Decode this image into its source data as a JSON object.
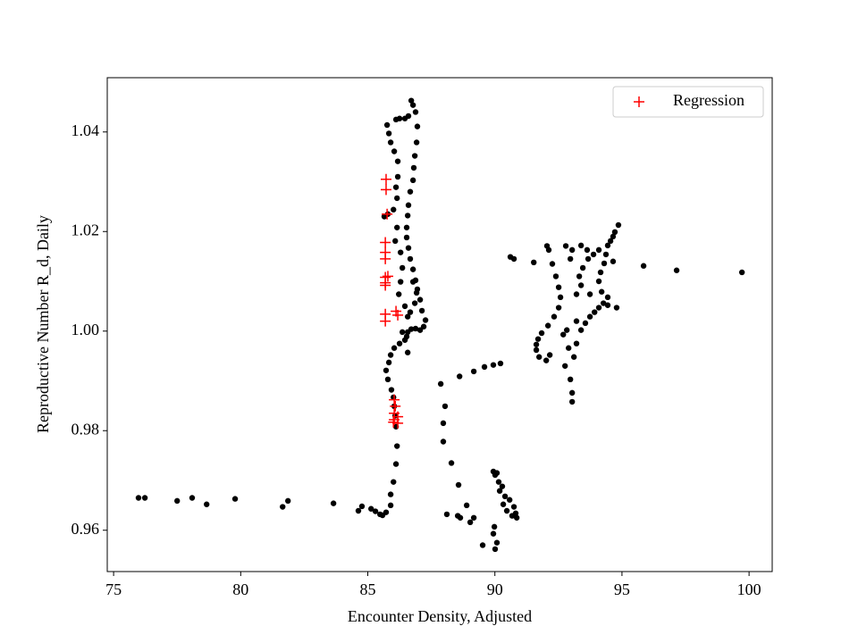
{
  "chart_data": {
    "type": "scatter",
    "xlabel": "Encounter Density, Adjusted",
    "ylabel": "Reproductive Number R_d, Daily",
    "xlim": [
      74.75,
      100.91
    ],
    "ylim": [
      0.9517,
      1.0509
    ],
    "xticks": [
      75,
      80,
      85,
      90,
      95,
      100
    ],
    "yticks": [
      0.96,
      0.98,
      {
        "value": 1,
        "label": "1.00"
      },
      1.02,
      1.04
    ],
    "grid": false,
    "legend_loc": "upper right",
    "series": [
      {
        "color": "#000000",
        "marker": "o",
        "x": [
          75.98,
          76.23,
          77.5,
          78.09,
          78.66,
          79.78,
          81.65,
          81.86,
          83.65,
          84.63,
          84.77,
          85.13,
          85.3,
          85.48,
          85.58,
          85.72,
          85.9,
          85.9,
          86.01,
          86.11,
          86.15,
          86.11,
          86.08,
          86.04,
          86.01,
          85.93,
          85.79,
          85.72,
          85.83,
          85.9,
          86.04,
          86.25,
          86.46,
          86.53,
          86.57,
          86.71,
          86.88,
          87.06,
          87.2,
          87.27,
          87.13,
          87.06,
          86.95,
          86.88,
          86.78,
          86.67,
          86.6,
          86.53,
          86.53,
          86.57,
          86.6,
          86.67,
          86.78,
          86.81,
          86.85,
          86.92,
          86.95,
          86.88,
          86.78,
          86.71,
          86.6,
          86.46,
          86.25,
          86.11,
          85.76,
          85.83,
          85.9,
          86.04,
          86.18,
          86.18,
          86.11,
          86.15,
          86.01,
          85.79,
          85.65,
          86.15,
          86.08,
          86.29,
          86.36,
          86.29,
          86.22,
          86.46,
          86.57,
          86.36,
          86.57,
          86.67,
          86.78,
          86.92,
          86.85,
          87.87,
          88.04,
          87.97,
          87.97,
          88.29,
          88.57,
          88.11,
          88.54,
          88.64,
          88.89,
          89.03,
          89.17,
          89.52,
          90.01,
          90.08,
          89.94,
          89.98,
          89.94,
          90.01,
          90.15,
          90.29,
          90.4,
          90.58,
          90.75,
          90.82,
          90.86,
          90.68,
          90.47,
          90.33,
          90.19,
          90.08,
          88.61,
          89.17,
          89.59,
          89.94,
          90.22,
          90.61,
          90.75,
          91.53,
          92.05,
          92.12,
          92.26,
          92.4,
          92.51,
          92.58,
          92.51,
          92.33,
          92.09,
          91.84,
          91.7,
          91.63,
          91.63,
          91.74,
          92.02,
          92.16,
          92.69,
          92.83,
          92.9,
          92.76,
          92.97,
          93.04,
          93.04,
          93.11,
          93.21,
          93.39,
          93.56,
          93.74,
          93.92,
          94.09,
          94.27,
          94.44,
          94.79,
          94.44,
          94.2,
          94.09,
          94.16,
          94.3,
          94.37,
          94.44,
          94.55,
          94.65,
          94.72,
          94.86,
          93.74,
          93.39,
          93.32,
          93.46,
          93.67,
          93.88,
          94.09,
          93.63,
          93.39,
          93.04,
          92.97,
          92.79,
          94.65,
          95.85,
          97.15,
          99.72,
          93.21,
          93.21
        ],
        "values": [
          0.9665,
          0.9665,
          0.9659,
          0.9665,
          0.9652,
          0.9663,
          0.9647,
          0.9659,
          0.9654,
          0.9639,
          0.9648,
          0.9643,
          0.9638,
          0.9632,
          0.963,
          0.9636,
          0.965,
          0.9672,
          0.9697,
          0.9733,
          0.9769,
          0.9808,
          0.983,
          0.9849,
          0.9867,
          0.9882,
          0.9903,
          0.9921,
          0.9937,
          0.9952,
          0.9966,
          0.9975,
          0.9982,
          0.9989,
          0.9998,
          1.0004,
          1.0005,
          1.0002,
          1.0009,
          1.0022,
          1.0041,
          1.0063,
          1.0084,
          1.0102,
          1.0124,
          1.0145,
          1.0167,
          1.0188,
          1.0208,
          1.0232,
          1.0253,
          1.028,
          1.0303,
          1.0328,
          1.0352,
          1.0379,
          1.0411,
          1.044,
          1.0454,
          1.0463,
          1.0432,
          1.0427,
          1.0427,
          1.0425,
          1.0414,
          1.0397,
          1.0379,
          1.0361,
          1.0341,
          1.031,
          1.0289,
          1.0267,
          1.0244,
          1.0235,
          1.023,
          1.0208,
          1.0181,
          1.0158,
          1.0127,
          1.0099,
          1.0074,
          1.005,
          1.0029,
          0.9998,
          0.9957,
          1.0038,
          1.0099,
          1.0077,
          1.0056,
          0.9894,
          0.9849,
          0.9815,
          0.9778,
          0.9735,
          0.9691,
          0.9632,
          0.9629,
          0.9625,
          0.965,
          0.9616,
          0.9625,
          0.957,
          0.9562,
          0.9575,
          0.9593,
          0.9607,
          0.9718,
          0.9711,
          0.9697,
          0.9688,
          0.9668,
          0.9661,
          0.9647,
          0.9634,
          0.9625,
          0.9629,
          0.9639,
          0.9652,
          0.9679,
          0.9715,
          0.9909,
          0.9919,
          0.9928,
          0.9932,
          0.9935,
          1.0149,
          1.0145,
          1.0138,
          1.0171,
          1.0163,
          1.0135,
          1.011,
          1.0088,
          1.0068,
          1.0047,
          1.0029,
          1.0011,
          0.9996,
          0.9984,
          0.9973,
          0.9962,
          0.9948,
          0.9941,
          0.9952,
          0.9993,
          1.0002,
          0.9966,
          0.993,
          0.9903,
          0.9876,
          0.9858,
          0.9948,
          0.9975,
          1.0002,
          1.0016,
          1.0029,
          1.0038,
          1.0047,
          1.0056,
          1.0052,
          1.0047,
          1.0068,
          1.0079,
          1.01,
          1.0118,
          1.0136,
          1.0154,
          1.0172,
          1.0181,
          1.019,
          1.0199,
          1.0213,
          1.0074,
          1.0092,
          1.011,
          1.0127,
          1.0145,
          1.0154,
          1.0163,
          1.0163,
          1.0172,
          1.0163,
          1.0145,
          1.0171,
          1.014,
          1.0131,
          1.0122,
          1.0118,
          1.0074,
          1.002
        ]
      },
      {
        "name": "Regression",
        "color": "#ff0000",
        "marker": "+",
        "x": [
          85.72,
          85.72,
          85.76,
          85.69,
          85.69,
          85.69,
          85.69,
          85.69,
          85.69,
          85.79,
          85.69,
          85.69,
          86.11,
          86.18,
          86.04,
          86.08,
          86.04,
          86.04,
          86.18,
          86.18,
          86.01
        ],
        "values": [
          1.0305,
          1.0284,
          1.0235,
          1.0178,
          1.0158,
          1.0145,
          1.0108,
          1.0097,
          1.0092,
          1.011,
          1.0034,
          1.002,
          1.004,
          1.0032,
          0.9862,
          0.9849,
          0.9835,
          0.9822,
          0.9828,
          0.9815,
          0.9817
        ]
      }
    ]
  }
}
